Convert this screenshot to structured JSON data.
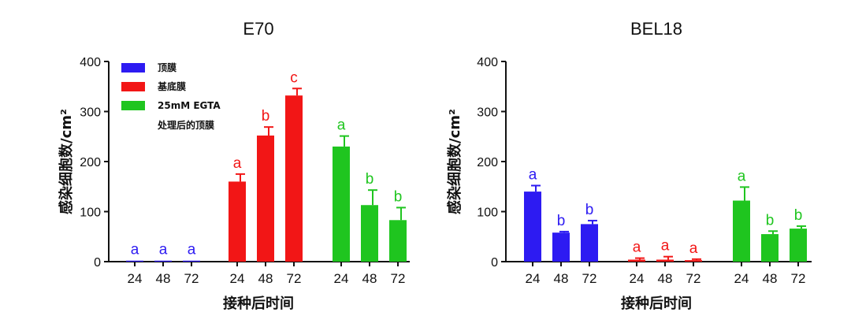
{
  "colors": {
    "apical": "#2d1bf2",
    "basal": "#f21616",
    "egta": "#1fc51f",
    "axis": "#111111"
  },
  "chart_data": [
    {
      "type": "bar",
      "title": "E70",
      "xlabel": "接种后时间",
      "ylabel": "感染细胞数/cm²",
      "ylim": [
        0,
        400
      ],
      "yticks": [
        0,
        100,
        200,
        300,
        400
      ],
      "legend": {
        "placement": "top-left",
        "entries": [
          "顶膜",
          "基底膜",
          "25mM EGTA",
          "处理后的顶膜"
        ]
      },
      "groups": [
        {
          "color_key": "apical",
          "categories": [
            "24",
            "48",
            "72"
          ],
          "values": [
            2,
            2,
            2
          ],
          "errors": [
            0,
            0,
            0
          ],
          "letters": [
            "a",
            "a",
            "a"
          ]
        },
        {
          "color_key": "basal",
          "categories": [
            "24",
            "48",
            "72"
          ],
          "values": [
            160,
            252,
            332
          ],
          "errors": [
            15,
            17,
            14
          ],
          "letters": [
            "a",
            "b",
            "c"
          ]
        },
        {
          "color_key": "egta",
          "categories": [
            "24",
            "48",
            "72"
          ],
          "values": [
            230,
            113,
            83
          ],
          "errors": [
            21,
            30,
            25
          ],
          "letters": [
            "a",
            "b",
            "b"
          ]
        }
      ]
    },
    {
      "type": "bar",
      "title": "BEL18",
      "xlabel": "接种后时间",
      "ylabel": "感染细胞数/cm²",
      "ylim": [
        0,
        400
      ],
      "yticks": [
        0,
        100,
        200,
        300,
        400
      ],
      "groups": [
        {
          "color_key": "apical",
          "categories": [
            "24",
            "48",
            "72"
          ],
          "values": [
            140,
            58,
            75
          ],
          "errors": [
            12,
            2,
            7
          ],
          "letters": [
            "a",
            "b",
            "b"
          ]
        },
        {
          "color_key": "basal",
          "categories": [
            "24",
            "48",
            "72"
          ],
          "values": [
            4,
            4,
            3
          ],
          "errors": [
            3,
            6,
            2
          ],
          "letters": [
            "a",
            "a",
            "a"
          ]
        },
        {
          "color_key": "egta",
          "categories": [
            "24",
            "48",
            "72"
          ],
          "values": [
            122,
            55,
            66
          ],
          "errors": [
            27,
            6,
            5
          ],
          "letters": [
            "a",
            "b",
            "b"
          ]
        }
      ]
    }
  ]
}
